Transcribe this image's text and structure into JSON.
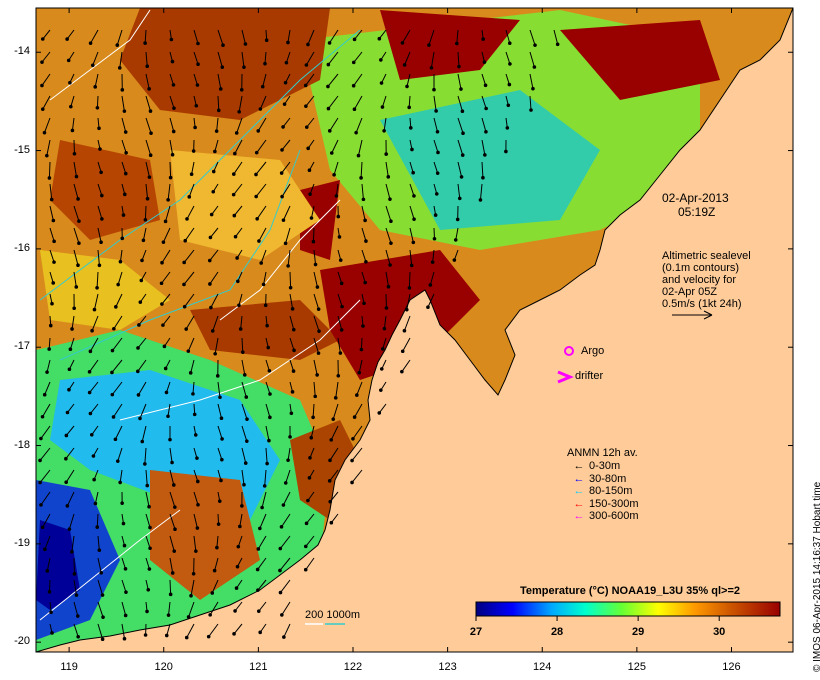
{
  "map": {
    "date": "02-Apr-2013",
    "time": "05:19Z",
    "x_ticks": [
      "119",
      "120",
      "121",
      "122",
      "123",
      "124",
      "125",
      "126"
    ],
    "y_ticks": [
      "-14",
      "-15",
      "-16",
      "-17",
      "-18",
      "-19",
      "-20"
    ],
    "lon_range": [
      118.65,
      126.65
    ],
    "lat_range": [
      -13.55,
      -20.1
    ],
    "altimetry": {
      "line1": "Altimetric sealevel",
      "line2": "(0.1m contours)",
      "line3": "and velocity for",
      "line4": "02-Apr 05Z",
      "line5": "0.5m/s (1kt 24h)"
    },
    "markers": {
      "argo": "Argo",
      "drifter": "drifter"
    },
    "anmn": {
      "title": "ANMN 12h av.",
      "items": [
        {
          "label": "0-30m",
          "color": "#000000"
        },
        {
          "label": "30-80m",
          "color": "#0000ff"
        },
        {
          "label": "80-150m",
          "color": "#00ccff"
        },
        {
          "label": "150-300m",
          "color": "#ff0000"
        },
        {
          "label": "300-600m",
          "color": "#ff00ff"
        }
      ]
    },
    "isobath_label": "200  1000m",
    "colorbar": {
      "title": "Temperature (°C) NOAA19_L3U 35% ql>=2",
      "ticks": [
        "27",
        "28",
        "29",
        "30"
      ],
      "range": [
        27,
        30.75
      ]
    },
    "side_text": "© IMOS 06-Apr-2015 14:16:37 Hobart time",
    "colors": {
      "land": "#ffcc99",
      "warm_max": "#990000",
      "cool_min": "#000080"
    }
  }
}
